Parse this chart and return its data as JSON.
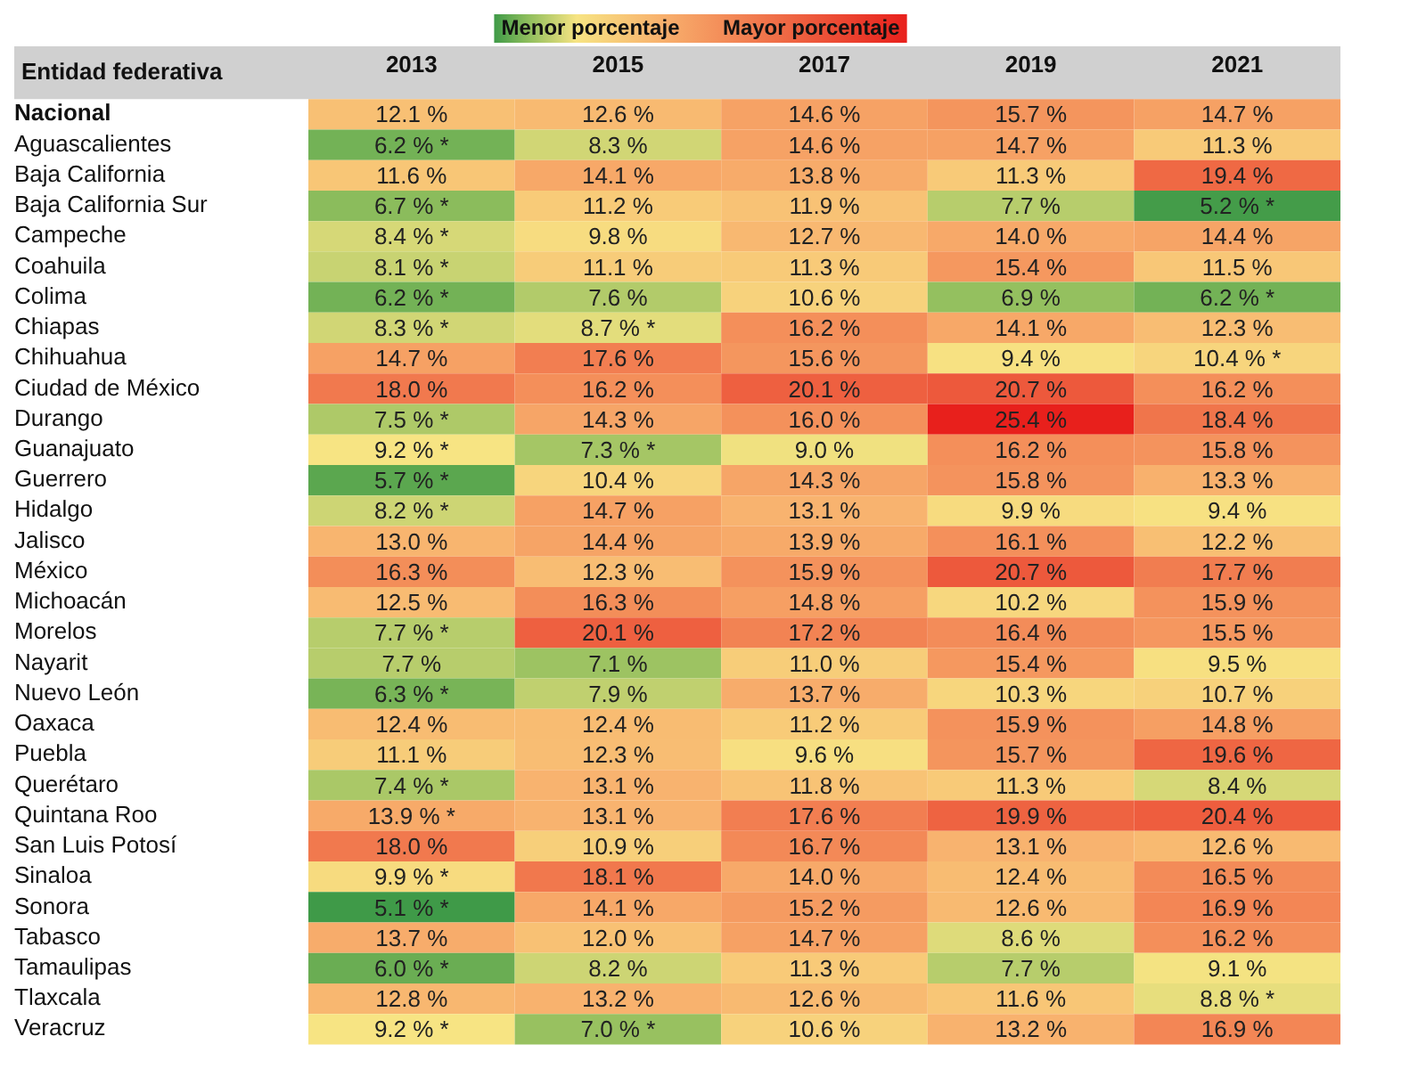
{
  "chart_data": {
    "type": "heatmap",
    "ylabel": "Entidad federativa",
    "annotations": [
      "Menor porcentaje",
      "Mayor porcentaje"
    ],
    "categories": [
      "2013",
      "2015",
      "2017",
      "2019",
      "2021"
    ],
    "y_categories": [
      "Nacional",
      "Aguascalientes",
      "Baja California",
      "Baja California Sur",
      "Campeche",
      "Coahuila",
      "Colima",
      "Chiapas",
      "Chihuahua",
      "Ciudad de México",
      "Durango",
      "Guanajuato",
      "Guerrero",
      "Hidalgo",
      "Jalisco",
      "México",
      "Michoacán",
      "Morelos",
      "Nayarit",
      "Nuevo León",
      "Oaxaca",
      "Puebla",
      "Querétaro",
      "Quintana Roo",
      "San Luis Potosí",
      "Sinaloa",
      "Sonora",
      "Tabasco",
      "Tamaulipas",
      "Tlaxcala",
      "Veracruz"
    ],
    "cells": [
      [
        12.1,
        12.6,
        14.6,
        15.7,
        14.7
      ],
      [
        6.2,
        8.3,
        14.6,
        14.7,
        11.3
      ],
      [
        11.6,
        14.1,
        13.8,
        11.3,
        19.4
      ],
      [
        6.7,
        11.2,
        11.9,
        7.7,
        5.2
      ],
      [
        8.4,
        9.8,
        12.7,
        14.0,
        14.4
      ],
      [
        8.1,
        11.1,
        11.3,
        15.4,
        11.5
      ],
      [
        6.2,
        7.6,
        10.6,
        6.9,
        6.2
      ],
      [
        8.3,
        8.7,
        16.2,
        14.1,
        12.3
      ],
      [
        14.7,
        17.6,
        15.6,
        9.4,
        10.4
      ],
      [
        18.0,
        16.2,
        20.1,
        20.7,
        16.2
      ],
      [
        7.5,
        14.3,
        16.0,
        25.4,
        18.4
      ],
      [
        9.2,
        7.3,
        9.0,
        16.2,
        15.8
      ],
      [
        5.7,
        10.4,
        14.3,
        15.8,
        13.3
      ],
      [
        8.2,
        14.7,
        13.1,
        9.9,
        9.4
      ],
      [
        13.0,
        14.4,
        13.9,
        16.1,
        12.2
      ],
      [
        16.3,
        12.3,
        15.9,
        20.7,
        17.7
      ],
      [
        12.5,
        16.3,
        14.8,
        10.2,
        15.9
      ],
      [
        7.7,
        20.1,
        17.2,
        16.4,
        15.5
      ],
      [
        7.7,
        7.1,
        11.0,
        15.4,
        9.5
      ],
      [
        6.3,
        7.9,
        13.7,
        10.3,
        10.7
      ],
      [
        12.4,
        12.4,
        11.2,
        15.9,
        14.8
      ],
      [
        11.1,
        12.3,
        9.6,
        15.7,
        19.6
      ],
      [
        7.4,
        13.1,
        11.8,
        11.3,
        8.4
      ],
      [
        13.9,
        13.1,
        17.6,
        19.9,
        20.4
      ],
      [
        18.0,
        10.9,
        16.7,
        13.1,
        12.6
      ],
      [
        9.9,
        18.1,
        14.0,
        12.4,
        16.5
      ],
      [
        5.1,
        14.1,
        15.2,
        12.6,
        16.9
      ],
      [
        13.7,
        12.0,
        14.7,
        8.6,
        16.2
      ],
      [
        6.0,
        8.2,
        11.3,
        7.7,
        9.1
      ],
      [
        12.8,
        13.2,
        12.6,
        11.6,
        8.8
      ],
      [
        9.2,
        7.0,
        10.6,
        13.2,
        16.9
      ]
    ],
    "cell_labels": [
      [
        "12.1 %",
        "12.6 %",
        "14.6 %",
        "15.7 %",
        "14.7 %"
      ],
      [
        "6.2 % *",
        "8.3 %",
        "14.6 %",
        "14.7 %",
        "11.3 %"
      ],
      [
        "11.6 %",
        "14.1 %",
        "13.8 %",
        "11.3 %",
        "19.4 %"
      ],
      [
        "6.7 % *",
        "11.2 %",
        "11.9 %",
        "7.7 %",
        "5.2 % *"
      ],
      [
        "8.4 % *",
        "9.8 %",
        "12.7 %",
        "14.0 %",
        "14.4 %"
      ],
      [
        "8.1 % *",
        "11.1 %",
        "11.3 %",
        "15.4 %",
        "11.5 %"
      ],
      [
        "6.2 % *",
        "7.6 %",
        "10.6 %",
        "6.9 %",
        "6.2 % *"
      ],
      [
        "8.3 % *",
        "8.7 % *",
        "16.2 %",
        "14.1 %",
        "12.3 %"
      ],
      [
        "14.7 %",
        "17.6 %",
        "15.6 %",
        "9.4 %",
        "10.4 % *"
      ],
      [
        "18.0 %",
        "16.2 %",
        "20.1 %",
        "20.7 %",
        "16.2 %"
      ],
      [
        "7.5 % *",
        "14.3 %",
        "16.0 %",
        "25.4 %",
        "18.4 %"
      ],
      [
        "9.2 % *",
        "7.3 % *",
        "9.0 %",
        "16.2 %",
        "15.8 %"
      ],
      [
        "5.7 % *",
        "10.4 %",
        "14.3 %",
        "15.8 %",
        "13.3 %"
      ],
      [
        "8.2 % *",
        "14.7 %",
        "13.1 %",
        "9.9 %",
        "9.4 %"
      ],
      [
        "13.0 %",
        "14.4 %",
        "13.9 %",
        "16.1 %",
        "12.2 %"
      ],
      [
        "16.3 %",
        "12.3 %",
        "15.9 %",
        "20.7 %",
        "17.7 %"
      ],
      [
        "12.5 %",
        "16.3 %",
        "14.8 %",
        "10.2 %",
        "15.9 %"
      ],
      [
        "7.7 % *",
        "20.1 %",
        "17.2 %",
        "16.4 %",
        "15.5 %"
      ],
      [
        "7.7 %",
        "7.1 %",
        "11.0 %",
        "15.4 %",
        "9.5 %"
      ],
      [
        "6.3 % *",
        "7.9 %",
        "13.7 %",
        "10.3 %",
        "10.7 %"
      ],
      [
        "12.4 %",
        "12.4 %",
        "11.2 %",
        "15.9 %",
        "14.8 %"
      ],
      [
        "11.1 %",
        "12.3 %",
        "9.6 %",
        "15.7 %",
        "19.6 %"
      ],
      [
        "7.4 % *",
        "13.1 %",
        "11.8 %",
        "11.3 %",
        "8.4 %"
      ],
      [
        "13.9 % *",
        "13.1 %",
        "17.6 %",
        "19.9 %",
        "20.4 %"
      ],
      [
        "18.0 %",
        "10.9 %",
        "16.7 %",
        "13.1 %",
        "12.6 %"
      ],
      [
        "9.9 % *",
        "18.1 %",
        "14.0 %",
        "12.4 %",
        "16.5 %"
      ],
      [
        "5.1 % *",
        "14.1 %",
        "15.2 %",
        "12.6 %",
        "16.9 %"
      ],
      [
        "13.7 %",
        "12.0 %",
        "14.7 %",
        "8.6 %",
        "16.2 %"
      ],
      [
        "6.0 % *",
        "8.2 %",
        "11.3 %",
        "7.7 %",
        "9.1 %"
      ],
      [
        "12.8 %",
        "13.2 %",
        "12.6 %",
        "11.6 %",
        "8.8 % *"
      ],
      [
        "9.2 % *",
        "7.0 % *",
        "10.6 %",
        "13.2 %",
        "16.9 %"
      ]
    ]
  }
}
